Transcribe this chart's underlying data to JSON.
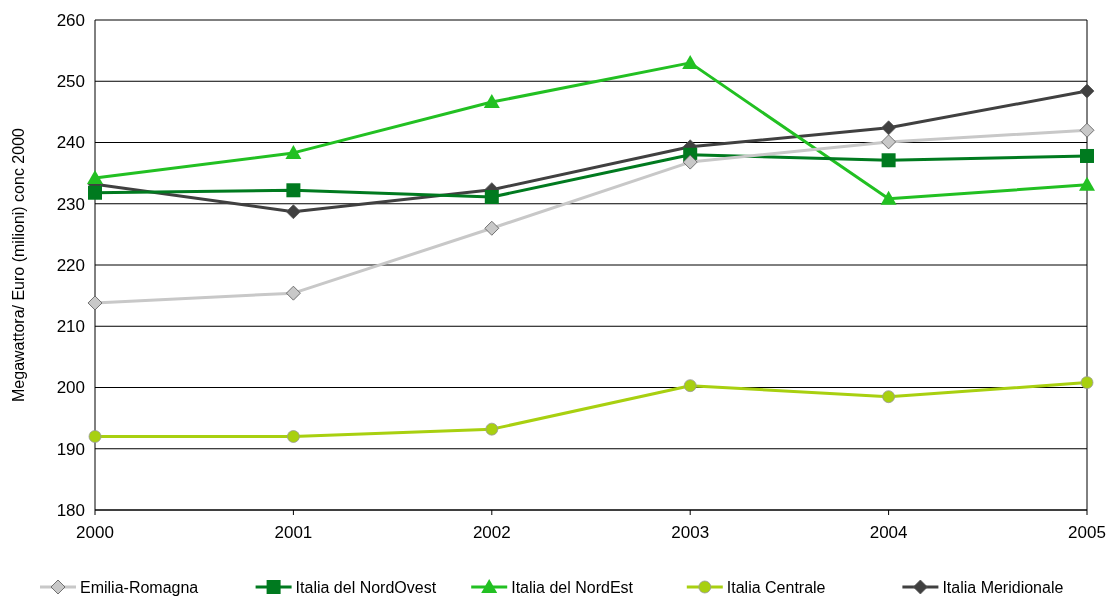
{
  "chart_data": {
    "type": "line",
    "ylabel": "Megawattora/ Euro (milioni) conc 2000",
    "x": [
      2000,
      2001,
      2002,
      2003,
      2004,
      2005
    ],
    "xlim": [
      2000,
      2005
    ],
    "xticks": [
      2000,
      2001,
      2002,
      2003,
      2004,
      2005
    ],
    "ylim": [
      180,
      260
    ],
    "yticks": [
      180,
      190,
      200,
      210,
      220,
      230,
      240,
      250,
      260
    ],
    "grid": "y",
    "legend": "bottom",
    "series": [
      {
        "name": "Emilia-Romagna",
        "color": "#c8c8c8",
        "marker": "diamond",
        "values": [
          213.8,
          215.4,
          226.0,
          236.8,
          240.1,
          242.0
        ]
      },
      {
        "name": "Italia del NordOvest",
        "color": "#007a1f",
        "marker": "square",
        "values": [
          231.8,
          232.2,
          231.1,
          238.0,
          237.1,
          237.8
        ]
      },
      {
        "name": "Italia del NordEst",
        "color": "#22c022",
        "marker": "triangle",
        "values": [
          234.2,
          238.3,
          246.6,
          253.0,
          230.8,
          233.1
        ]
      },
      {
        "name": "Italia Centrale",
        "color": "#a8d010",
        "marker": "circle",
        "values": [
          192.0,
          192.0,
          193.2,
          200.3,
          198.5,
          200.8
        ]
      },
      {
        "name": "Italia Meridionale",
        "color": "#404040",
        "marker": "diamond",
        "values": [
          233.2,
          228.7,
          232.3,
          239.3,
          242.4,
          248.4
        ]
      }
    ]
  }
}
